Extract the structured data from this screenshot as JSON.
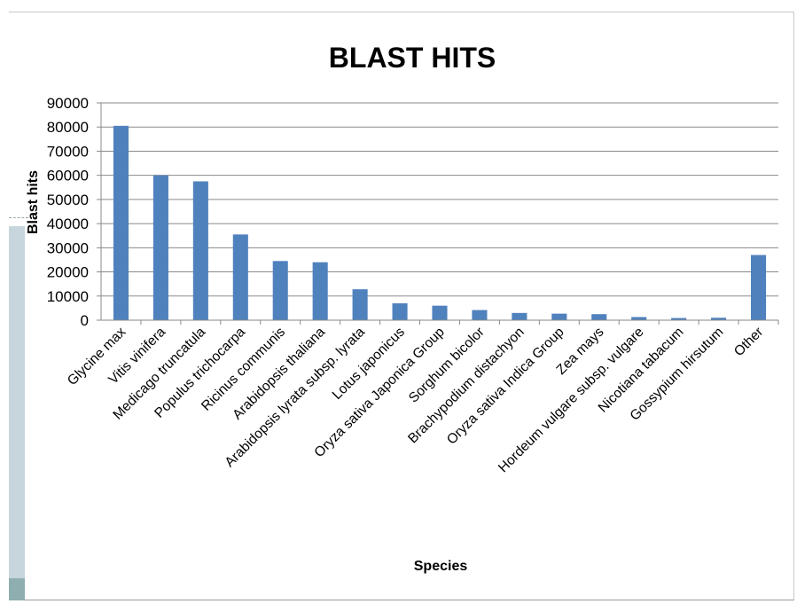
{
  "chart_data": {
    "type": "bar",
    "title": "BLAST HITS",
    "xlabel": "Species",
    "ylabel": "Blast hits",
    "ylim": [
      0,
      90000
    ],
    "yticks": [
      "0",
      "10000",
      "20000",
      "30000",
      "40000",
      "50000",
      "60000",
      "70000",
      "80000",
      "90000"
    ],
    "grid": true,
    "legend": "none",
    "bar_color": "#4f81bd",
    "categories": [
      "Glycine max",
      "Vitis vinifera",
      "Medicago truncatula",
      "Populus trichocarpa",
      "Ricinus communis",
      "Arabidopsis thaliana",
      "Arabidopsis lyrata subsp. lyrata",
      "Lotus japonicus",
      "Oryza sativa Japonica Group",
      "Sorghum bicolor",
      "Brachypodium distachyon",
      "Oryza sativa Indica Group",
      "Zea mays",
      "Hordeum vulgare subsp. vulgare",
      "Nicotiana tabacum",
      "Gossypium hirsutum",
      "Other"
    ],
    "values": [
      80500,
      60000,
      57500,
      35500,
      24500,
      24000,
      12800,
      7000,
      6000,
      4200,
      3000,
      2700,
      2500,
      1300,
      900,
      1000,
      27000
    ]
  }
}
